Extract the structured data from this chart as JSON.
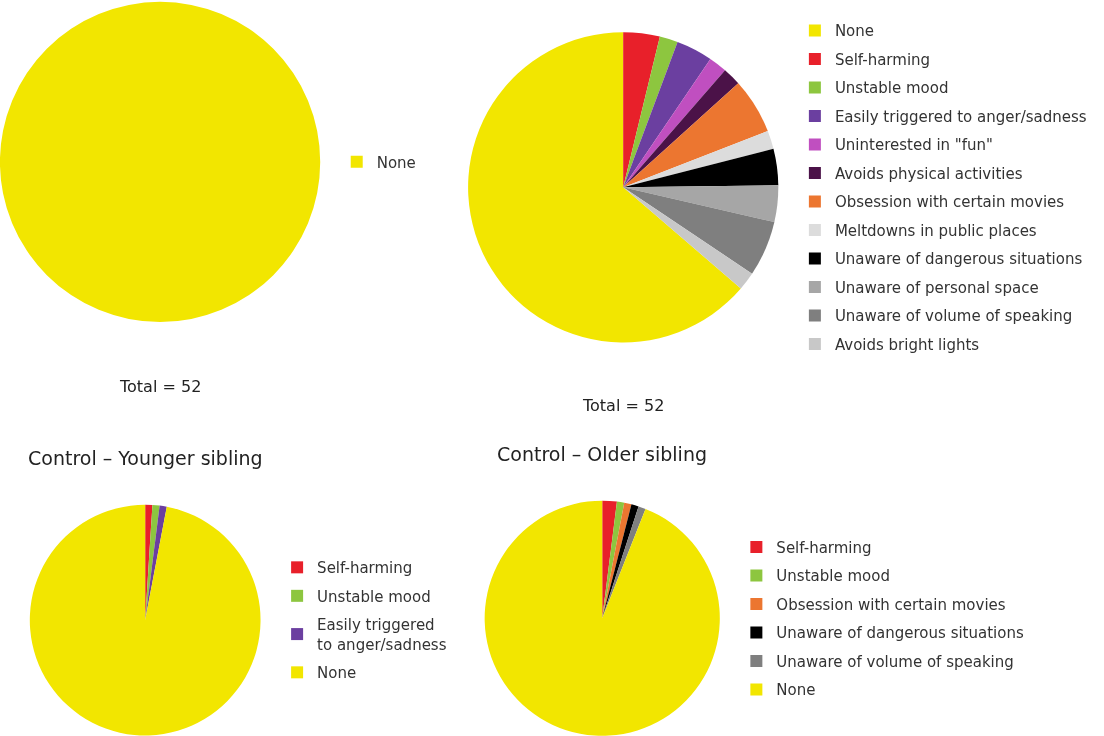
{
  "chart_data": [
    {
      "type": "pie",
      "categories": [
        "None"
      ],
      "values": [
        100
      ],
      "colors": [
        "#f2e600"
      ],
      "annotations": [
        "Total = 52"
      ],
      "legend": "right"
    },
    {
      "type": "pie",
      "categories": [
        "None",
        "Self-harming",
        "Unstable mood",
        "Easily triggered to anger/sadness",
        "Uninterested in \"fun\"",
        "Avoids physical activities",
        "Obsession with certain movies",
        "Meltdowns in public places",
        "Unaware of dangerous situations",
        "Unaware of personal space",
        "Unaware of volume of speaking",
        "Avoids bright lights"
      ],
      "values": [
        63.7,
        3.8,
        1.9,
        3.8,
        1.9,
        1.9,
        5.8,
        1.9,
        3.8,
        3.8,
        5.8,
        1.9
      ],
      "colors": [
        "#f2e600",
        "#e8202a",
        "#8dc63f",
        "#6b3fa0",
        "#c04fc0",
        "#4b1248",
        "#ec7630",
        "#dcdcdc",
        "#000000",
        "#a6a6a6",
        "#7f7f7f",
        "#c8c8c8"
      ],
      "annotations": [
        "Total = 52"
      ],
      "legend": "right"
    },
    {
      "type": "pie",
      "title": "Control – Younger sibling",
      "categories": [
        "Self-harming",
        "Unstable mood",
        "Easily triggered to anger/sadness",
        "None"
      ],
      "values": [
        1,
        1,
        1,
        97
      ],
      "colors": [
        "#e8202a",
        "#8dc63f",
        "#6b3fa0",
        "#f2e600"
      ],
      "legend": "right"
    },
    {
      "type": "pie",
      "title": "Control – Older sibling",
      "categories": [
        "Self-harming",
        "Unstable mood",
        "Obsession with certain movies",
        "Unaware of dangerous situations",
        "Unaware of volume of speaking",
        "None"
      ],
      "values": [
        2,
        1,
        1,
        1,
        1,
        94
      ],
      "colors": [
        "#e8202a",
        "#8dc63f",
        "#ec7630",
        "#000000",
        "#7f7f7f",
        "#f2e600"
      ],
      "legend": "right"
    }
  ]
}
